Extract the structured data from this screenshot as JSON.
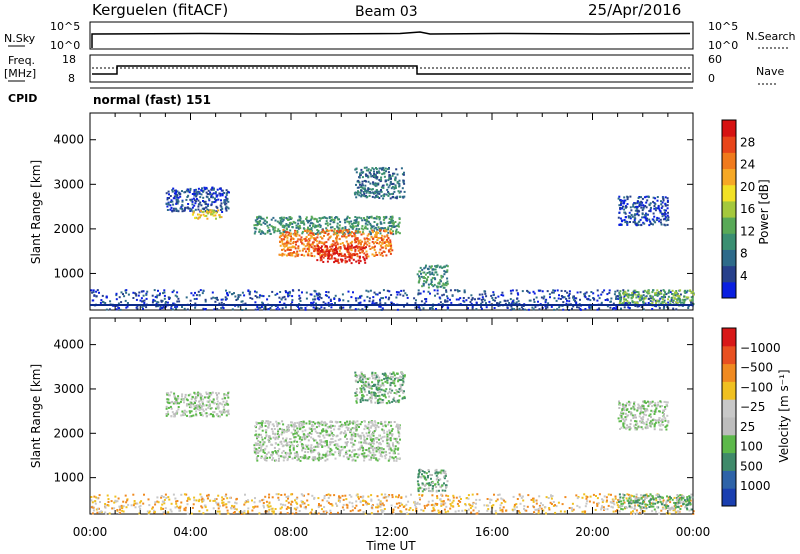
{
  "header": {
    "station": "Kerguelen (fitACF)",
    "beam": "Beam 03",
    "date": "25/Apr/2016"
  },
  "top_panels": {
    "nsky_label": "N.Sky",
    "nsky_top": "10^5",
    "nsky_bottom": "10^0",
    "nsearch_label": "N.Search",
    "nsearch_top": "10^5",
    "nsearch_bottom": "10^0",
    "freq_label_1": "Freq.",
    "freq_label_2": "[MHz]",
    "freq_top": "18",
    "freq_bottom": "8",
    "nave_label": "Nave",
    "nave_top": "60",
    "nave_bottom": "0",
    "cpid_label": "CPID",
    "cpid_value": "normal (fast) 151"
  },
  "chart_data": [
    {
      "type": "heatmap",
      "name": "power-panel",
      "ylabel": "Slant Range [km]",
      "xlabel": "Time UT",
      "x_ticks": [
        "00:00",
        "04:00",
        "08:00",
        "12:00",
        "16:00",
        "20:00",
        "00:00"
      ],
      "x_range_hours": [
        0,
        24
      ],
      "y_ticks": [
        1000,
        2000,
        3000,
        4000
      ],
      "ylim": [
        180,
        4600
      ],
      "colorbar": {
        "label": "Power [dB]",
        "ticks": [
          4,
          8,
          12,
          16,
          20,
          24,
          28
        ],
        "colors": [
          "#0a1fe0",
          "#27408b",
          "#2e6b8a",
          "#3a8f72",
          "#58a957",
          "#a4c83c",
          "#f2e125",
          "#f6a825",
          "#f07a1c",
          "#e8451a",
          "#d61212"
        ]
      },
      "regions": [
        {
          "t0": 0.0,
          "t1": 24.0,
          "r0": 200,
          "r1": 650,
          "level": 1
        },
        {
          "t0": 3.0,
          "t1": 5.5,
          "r0": 2400,
          "r1": 2950,
          "level": 1
        },
        {
          "t0": 4.0,
          "t1": 5.2,
          "r0": 2250,
          "r1": 2450,
          "level": 6
        },
        {
          "t0": 6.5,
          "t1": 12.3,
          "r0": 1900,
          "r1": 2300,
          "level": 3
        },
        {
          "t0": 7.5,
          "t1": 12.0,
          "r0": 1400,
          "r1": 2000,
          "level": 8
        },
        {
          "t0": 9.0,
          "t1": 11.0,
          "r0": 1250,
          "r1": 1650,
          "level": 10
        },
        {
          "t0": 10.5,
          "t1": 12.5,
          "r0": 2700,
          "r1": 3400,
          "level": 2
        },
        {
          "t0": 13.0,
          "t1": 14.2,
          "r0": 700,
          "r1": 1200,
          "level": 3
        },
        {
          "t0": 21.0,
          "t1": 23.0,
          "r0": 2100,
          "r1": 2750,
          "level": 1
        },
        {
          "t0": 21.0,
          "t1": 24.0,
          "r0": 300,
          "r1": 650,
          "level": 4
        }
      ]
    },
    {
      "type": "heatmap",
      "name": "velocity-panel",
      "ylabel": "Slant Range [km]",
      "xlabel": "Time UT",
      "x_ticks": [
        "00:00",
        "04:00",
        "08:00",
        "12:00",
        "16:00",
        "20:00",
        "00:00"
      ],
      "x_range_hours": [
        0,
        24
      ],
      "y_ticks": [
        1000,
        2000,
        3000,
        4000
      ],
      "ylim": [
        180,
        4600
      ],
      "colorbar": {
        "label": "Velocity [m s⁻¹]",
        "ticks": [
          "1000",
          "500",
          "100",
          "25",
          "−25",
          "−100",
          "−500",
          "−1000"
        ],
        "colors": [
          "#1a3fb0",
          "#2e63a8",
          "#3f8a6a",
          "#5cb84a",
          "#bdbdbd",
          "#c8c8c8",
          "#f0c020",
          "#f08a20",
          "#e85020",
          "#d81818"
        ]
      },
      "regions": [
        {
          "t0": 0.0,
          "t1": 24.0,
          "r0": 200,
          "r1": 650,
          "level": 6
        },
        {
          "t0": 3.0,
          "t1": 5.5,
          "r0": 2400,
          "r1": 2950,
          "level": 4
        },
        {
          "t0": 6.5,
          "t1": 12.3,
          "r0": 1400,
          "r1": 2300,
          "level": 4
        },
        {
          "t0": 10.5,
          "t1": 12.5,
          "r0": 2700,
          "r1": 3400,
          "level": 3
        },
        {
          "t0": 13.0,
          "t1": 14.2,
          "r0": 700,
          "r1": 1200,
          "level": 3
        },
        {
          "t0": 21.0,
          "t1": 23.0,
          "r0": 2100,
          "r1": 2750,
          "level": 4
        },
        {
          "t0": 21.0,
          "t1": 24.0,
          "r0": 300,
          "r1": 650,
          "level": 3
        }
      ]
    }
  ]
}
